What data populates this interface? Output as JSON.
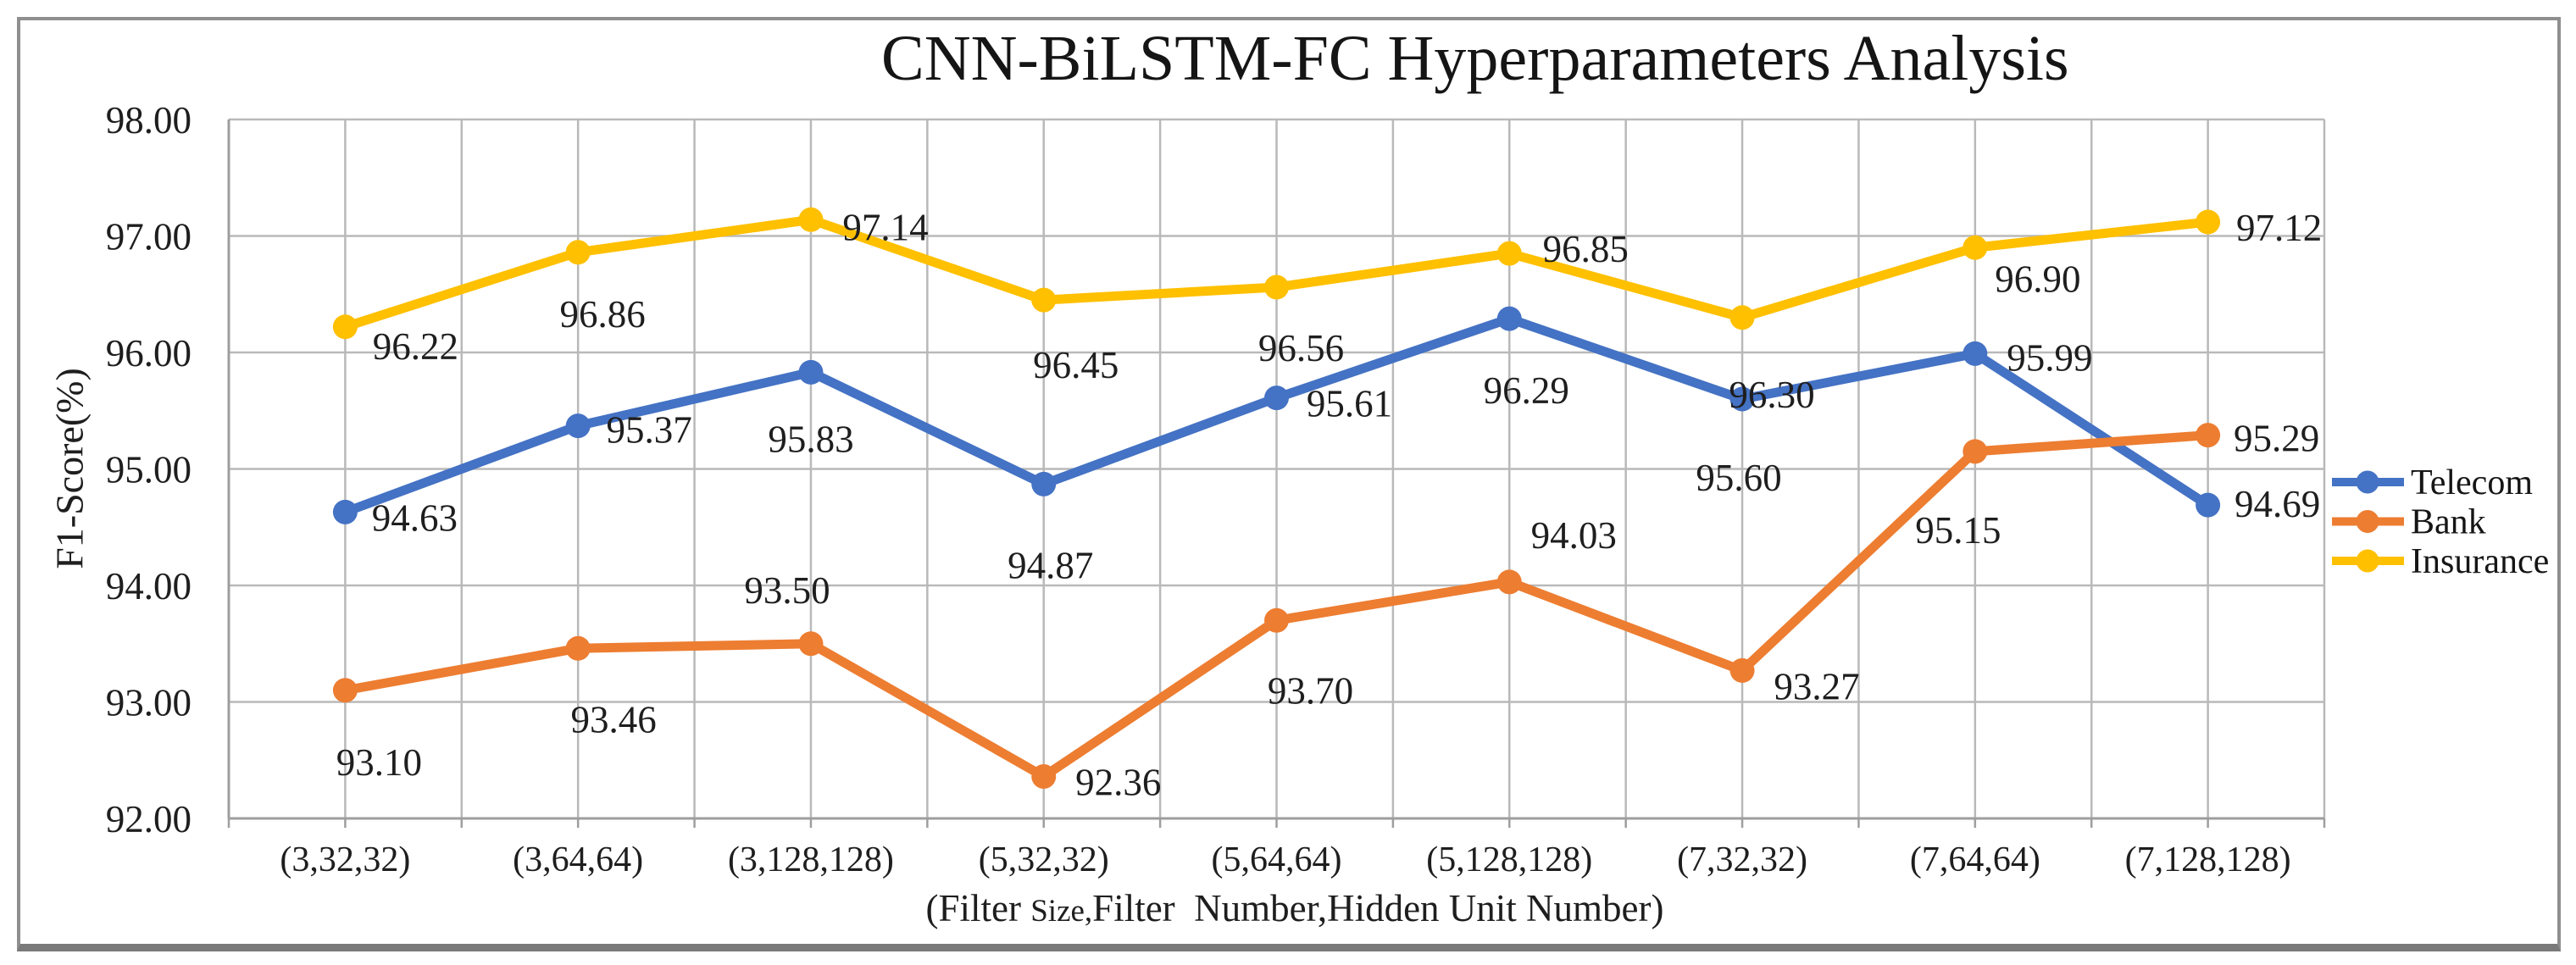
{
  "chart": {
    "title": "CNN-BiLSTM-FC Hyperparameters Analysis",
    "y_axis_title": "F1-Score(%)",
    "x_axis_title_prefix": "(Filter ",
    "x_axis_title_small": "Size,",
    "x_axis_title_suffix": "Filter  Number,Hidden Unit Number)"
  },
  "chart_data": {
    "type": "line",
    "title": "CNN-BiLSTM-FC Hyperparameters Analysis",
    "xlabel": "(Filter Size,Filter Number,Hidden Unit Number)",
    "ylabel": "F1-Score(%)",
    "ylim": [
      92,
      98
    ],
    "ytick_step": 1,
    "y_tick_labels": [
      "92.00",
      "93.00",
      "94.00",
      "95.00",
      "96.00",
      "97.00",
      "98.00"
    ],
    "grid": true,
    "legend_position": "right",
    "categories": [
      "(3,32,32)",
      "(3,64,64)",
      "(3,128,128)",
      "(5,32,32)",
      "(5,64,64)",
      "(5,128,128)",
      "(7,32,32)",
      "(7,64,64)",
      "(7,128,128)"
    ],
    "series": [
      {
        "name": "Telecom",
        "color": "#4472C4",
        "values": [
          94.63,
          95.37,
          95.83,
          94.87,
          95.61,
          96.29,
          95.6,
          95.99,
          94.69
        ],
        "label_offsets": [
          [
            82,
            6
          ],
          [
            84,
            4
          ],
          [
            0,
            78
          ],
          [
            8,
            95
          ],
          [
            86,
            6
          ],
          [
            20,
            84
          ],
          [
            -4,
            92
          ],
          [
            88,
            4
          ],
          [
            82,
            -2
          ]
        ]
      },
      {
        "name": "Bank",
        "color": "#ED7D31",
        "values": [
          93.1,
          93.46,
          93.5,
          92.36,
          93.7,
          94.03,
          93.27,
          95.15,
          95.29
        ],
        "label_offsets": [
          [
            40,
            84
          ],
          [
            42,
            83
          ],
          [
            -28,
            -64
          ],
          [
            88,
            6
          ],
          [
            40,
            82
          ],
          [
            76,
            -56
          ],
          [
            88,
            18
          ],
          [
            -20,
            92
          ],
          [
            81,
            3
          ]
        ]
      },
      {
        "name": "Insurance",
        "color": "#FFC000",
        "values": [
          96.22,
          96.86,
          97.14,
          96.45,
          96.56,
          96.85,
          96.3,
          96.9,
          97.12
        ],
        "label_offsets": [
          [
            83,
            22
          ],
          [
            29,
            72
          ],
          [
            88,
            8
          ],
          [
            38,
            76
          ],
          [
            29,
            71
          ],
          [
            90,
            -6
          ],
          [
            35,
            90
          ],
          [
            74,
            36
          ],
          [
            84,
            6
          ]
        ]
      }
    ]
  },
  "style": {
    "gridline_color": "#b9b9b9",
    "axis_color": "#9e9e9e",
    "label_color": "#1e1e1e"
  }
}
